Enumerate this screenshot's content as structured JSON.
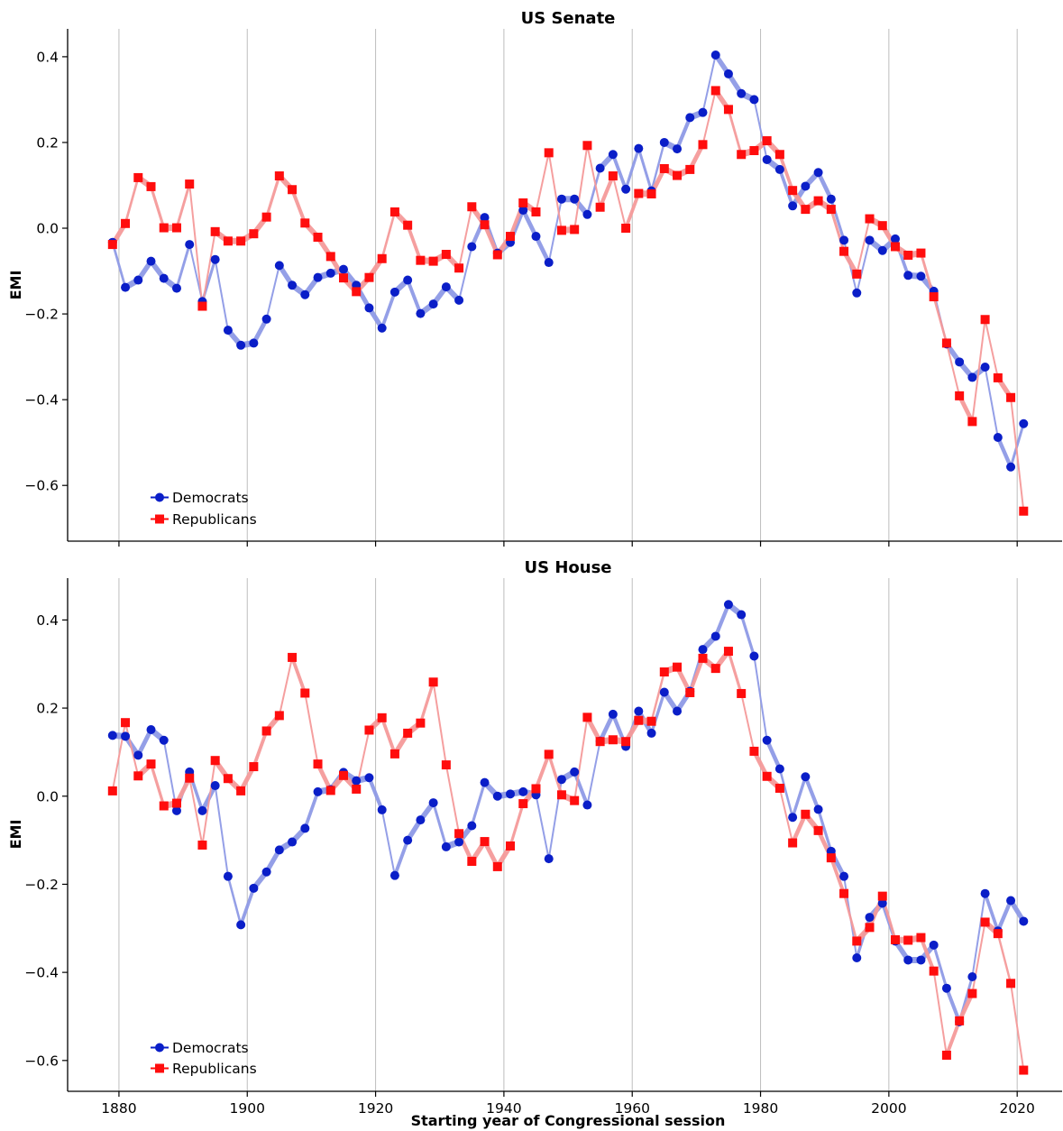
{
  "figure": {
    "xlabel": "Starting year of Congressional session"
  },
  "colors": {
    "dem_marker": "#0a1ec8",
    "dem_line": "#8f9ae6",
    "rep_marker": "#ff0d0d",
    "rep_line": "#f59a9a",
    "grid": "#bdbdbd",
    "axis": "#000000"
  },
  "chart_data": [
    {
      "type": "line",
      "title": "US Senate",
      "xlabel": "",
      "ylabel": "EMI",
      "xlim": [
        1872,
        2027
      ],
      "ylim": [
        -0.73,
        0.465
      ],
      "xticks": [
        1880,
        1900,
        1920,
        1940,
        1960,
        1980,
        2000,
        2020
      ],
      "yticks": [
        -0.6,
        -0.4,
        -0.2,
        0.0,
        0.2,
        0.4
      ],
      "ytick_labels": [
        "−0.6",
        "−0.4",
        "−0.2",
        "0.0",
        "0.2",
        "0.4"
      ],
      "grid": "vertical",
      "legend_position": "lower-left",
      "x": [
        1879,
        1881,
        1883,
        1885,
        1887,
        1889,
        1891,
        1893,
        1895,
        1897,
        1899,
        1901,
        1903,
        1905,
        1907,
        1909,
        1911,
        1913,
        1915,
        1917,
        1919,
        1921,
        1923,
        1925,
        1927,
        1929,
        1931,
        1933,
        1935,
        1937,
        1939,
        1941,
        1943,
        1945,
        1947,
        1949,
        1951,
        1953,
        1955,
        1957,
        1959,
        1961,
        1963,
        1965,
        1967,
        1969,
        1971,
        1973,
        1975,
        1977,
        1979,
        1981,
        1983,
        1985,
        1987,
        1989,
        1991,
        1993,
        1995,
        1997,
        1999,
        2001,
        2003,
        2005,
        2007,
        2009,
        2011,
        2013,
        2015,
        2017,
        2019,
        2021
      ],
      "series": [
        {
          "name": "Democrats",
          "marker": "circle",
          "values": [
            -0.033,
            -0.138,
            -0.121,
            -0.077,
            -0.117,
            -0.14,
            -0.038,
            -0.171,
            -0.073,
            -0.238,
            -0.273,
            -0.268,
            -0.212,
            -0.087,
            -0.133,
            -0.155,
            -0.115,
            -0.105,
            -0.096,
            -0.133,
            -0.186,
            -0.233,
            -0.149,
            -0.121,
            -0.199,
            -0.177,
            -0.137,
            -0.168,
            -0.043,
            0.025,
            -0.058,
            -0.033,
            0.042,
            -0.019,
            -0.08,
            0.068,
            0.068,
            0.032,
            0.14,
            0.172,
            0.091,
            0.186,
            0.087,
            0.2,
            0.185,
            0.258,
            0.27,
            0.404,
            0.36,
            0.314,
            0.3,
            0.16,
            0.137,
            0.052,
            0.098,
            0.13,
            0.068,
            -0.028,
            -0.151,
            -0.028,
            -0.052,
            -0.025,
            -0.11,
            -0.112,
            -0.147,
            -0.27,
            -0.312,
            -0.348,
            -0.324,
            -0.488,
            -0.557,
            -0.456
          ]
        },
        {
          "name": "Republicans",
          "marker": "square",
          "values": [
            -0.038,
            0.011,
            0.118,
            0.097,
            0.001,
            0.001,
            0.103,
            -0.182,
            -0.008,
            -0.03,
            -0.03,
            -0.013,
            0.026,
            0.122,
            0.09,
            0.012,
            -0.021,
            -0.066,
            -0.116,
            -0.148,
            -0.115,
            -0.071,
            0.038,
            0.007,
            -0.075,
            -0.077,
            -0.061,
            -0.093,
            0.05,
            0.008,
            -0.062,
            -0.019,
            0.059,
            0.038,
            0.176,
            -0.005,
            -0.003,
            0.193,
            0.049,
            0.122,
            0.0,
            0.081,
            0.08,
            0.139,
            0.123,
            0.137,
            0.195,
            0.321,
            0.277,
            0.172,
            0.181,
            0.204,
            0.172,
            0.088,
            0.044,
            0.064,
            0.044,
            -0.054,
            -0.107,
            0.022,
            0.006,
            -0.043,
            -0.063,
            -0.058,
            -0.16,
            -0.268,
            -0.391,
            -0.451,
            -0.213,
            -0.349,
            -0.395,
            -0.66
          ]
        }
      ]
    },
    {
      "type": "line",
      "title": "US House",
      "xlabel": "Starting year of Congressional session",
      "ylabel": "EMI",
      "xlim": [
        1872,
        2027
      ],
      "ylim": [
        -0.67,
        0.495
      ],
      "xticks": [
        1880,
        1900,
        1920,
        1940,
        1960,
        1980,
        2000,
        2020
      ],
      "yticks": [
        -0.6,
        -0.4,
        -0.2,
        0.0,
        0.2,
        0.4
      ],
      "ytick_labels": [
        "−0.6",
        "−0.4",
        "−0.2",
        "0.0",
        "0.2",
        "0.4"
      ],
      "grid": "vertical",
      "legend_position": "lower-left",
      "x": [
        1879,
        1881,
        1883,
        1885,
        1887,
        1889,
        1891,
        1893,
        1895,
        1897,
        1899,
        1901,
        1903,
        1905,
        1907,
        1909,
        1911,
        1913,
        1915,
        1917,
        1919,
        1921,
        1923,
        1925,
        1927,
        1929,
        1931,
        1933,
        1935,
        1937,
        1939,
        1941,
        1943,
        1945,
        1947,
        1949,
        1951,
        1953,
        1955,
        1957,
        1959,
        1961,
        1963,
        1965,
        1967,
        1969,
        1971,
        1973,
        1975,
        1977,
        1979,
        1981,
        1983,
        1985,
        1987,
        1989,
        1991,
        1993,
        1995,
        1997,
        1999,
        2001,
        2003,
        2005,
        2007,
        2009,
        2011,
        2013,
        2015,
        2017,
        2019,
        2021
      ],
      "series": [
        {
          "name": "Democrats",
          "marker": "circle",
          "values": [
            0.138,
            0.136,
            0.093,
            0.151,
            0.127,
            -0.033,
            0.055,
            -0.033,
            0.024,
            -0.182,
            -0.292,
            -0.209,
            -0.172,
            -0.122,
            -0.104,
            -0.073,
            0.01,
            0.015,
            0.054,
            0.035,
            0.042,
            -0.031,
            -0.18,
            -0.1,
            -0.054,
            -0.015,
            -0.115,
            -0.104,
            -0.067,
            0.031,
            0.0,
            0.005,
            0.01,
            0.003,
            -0.142,
            0.038,
            0.055,
            -0.02,
            0.125,
            0.186,
            0.113,
            0.193,
            0.143,
            0.236,
            0.193,
            0.238,
            0.333,
            0.363,
            0.435,
            0.412,
            0.318,
            0.127,
            0.062,
            -0.048,
            0.044,
            -0.03,
            -0.125,
            -0.182,
            -0.367,
            -0.275,
            -0.243,
            -0.329,
            -0.372,
            -0.372,
            -0.338,
            -0.436,
            -0.512,
            -0.41,
            -0.221,
            -0.306,
            -0.237,
            -0.284
          ]
        },
        {
          "name": "Republicans",
          "marker": "square",
          "values": [
            0.012,
            0.167,
            0.046,
            0.073,
            -0.022,
            -0.016,
            0.041,
            -0.111,
            0.081,
            0.04,
            0.012,
            0.067,
            0.148,
            0.183,
            0.315,
            0.234,
            0.073,
            0.013,
            0.047,
            0.016,
            0.15,
            0.178,
            0.096,
            0.143,
            0.166,
            0.259,
            0.071,
            -0.085,
            -0.148,
            -0.103,
            -0.16,
            -0.113,
            -0.017,
            0.017,
            0.095,
            0.003,
            -0.01,
            0.179,
            0.124,
            0.128,
            0.124,
            0.172,
            0.17,
            0.282,
            0.293,
            0.235,
            0.313,
            0.29,
            0.329,
            0.233,
            0.102,
            0.045,
            0.018,
            -0.106,
            -0.041,
            -0.078,
            -0.14,
            -0.221,
            -0.329,
            -0.298,
            -0.227,
            -0.326,
            -0.327,
            -0.321,
            -0.397,
            -0.588,
            -0.51,
            -0.448,
            -0.286,
            -0.312,
            -0.425,
            -0.622
          ]
        }
      ]
    }
  ]
}
